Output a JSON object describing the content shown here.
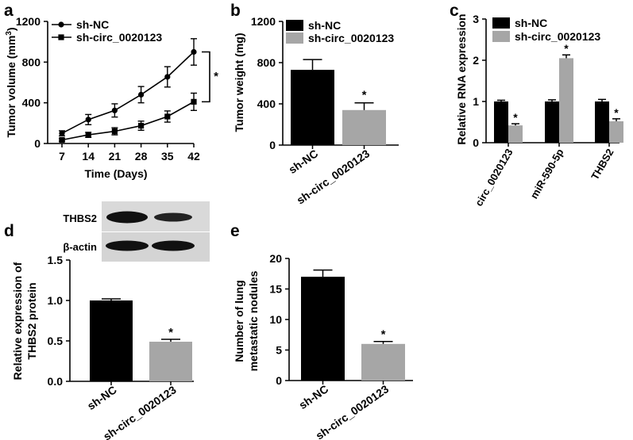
{
  "panels": {
    "a": "a",
    "b": "b",
    "c": "c",
    "d": "d",
    "e": "e"
  },
  "colors": {
    "nc": "#000000",
    "circ": "#a6a6a6"
  },
  "chart_data": [
    {
      "id": "a",
      "type": "line",
      "xlabel": "Time (Days)",
      "ylabel": "Tumor volume (mm³)",
      "x": [
        7,
        14,
        21,
        28,
        35,
        42
      ],
      "ylim": [
        0,
        1200
      ],
      "yticks": [
        0,
        400,
        800,
        1200
      ],
      "legend": "top-left",
      "series": [
        {
          "name": "sh-NC",
          "values": [
            100,
            235,
            325,
            480,
            655,
            900
          ],
          "errors": [
            25,
            50,
            65,
            80,
            100,
            130
          ]
        },
        {
          "name": "sh-circ_0020123",
          "values": [
            35,
            85,
            120,
            175,
            265,
            410
          ],
          "errors": [
            12,
            25,
            35,
            45,
            55,
            85
          ]
        }
      ],
      "annotation": "*"
    },
    {
      "id": "b",
      "type": "bar",
      "ylabel": "Tumor weight (mg)",
      "categories": [
        "sh-NC",
        "sh-circ_0020123"
      ],
      "values": [
        730,
        340
      ],
      "errors": [
        100,
        70
      ],
      "ylim": [
        0,
        1200
      ],
      "yticks": [
        0,
        400,
        800,
        1200
      ],
      "legend": "top-left",
      "series_names": [
        "sh-NC",
        "sh-circ_0020123"
      ],
      "annotation": "*"
    },
    {
      "id": "c",
      "type": "bar",
      "ylabel": "Relative RNA expression",
      "categories": [
        "circ_0020123",
        "miR-590-5p",
        "THBS2"
      ],
      "series": [
        {
          "name": "sh-NC",
          "values": [
            1.0,
            1.0,
            1.0
          ],
          "errors": [
            0.03,
            0.04,
            0.05
          ]
        },
        {
          "name": "sh-circ_0020123",
          "values": [
            0.42,
            2.05,
            0.52
          ],
          "errors": [
            0.04,
            0.08,
            0.06
          ]
        }
      ],
      "ylim": [
        0,
        3
      ],
      "yticks": [
        0,
        1,
        2,
        3
      ],
      "legend": "top",
      "annotation": "*"
    },
    {
      "id": "d",
      "type": "bar",
      "ylabel": "Relative expression of THBS2 protein",
      "categories": [
        "sh-NC",
        "sh-circ_0020123"
      ],
      "values": [
        1.0,
        0.49
      ],
      "errors": [
        0.02,
        0.03
      ],
      "ylim": [
        0,
        1.5
      ],
      "yticks": [
        "0.0",
        "0.5",
        "1.0",
        "1.5"
      ],
      "blot_labels": [
        "THBS2",
        "β-actin"
      ],
      "annotation": "*"
    },
    {
      "id": "e",
      "type": "bar",
      "ylabel": "Number of lung metastatic nodules",
      "categories": [
        "sh-NC",
        "sh-circ_0020123"
      ],
      "values": [
        17,
        6
      ],
      "errors": [
        1.1,
        0.4
      ],
      "ylim": [
        0,
        20
      ],
      "yticks": [
        0,
        5,
        10,
        15,
        20
      ],
      "annotation": "*"
    }
  ]
}
